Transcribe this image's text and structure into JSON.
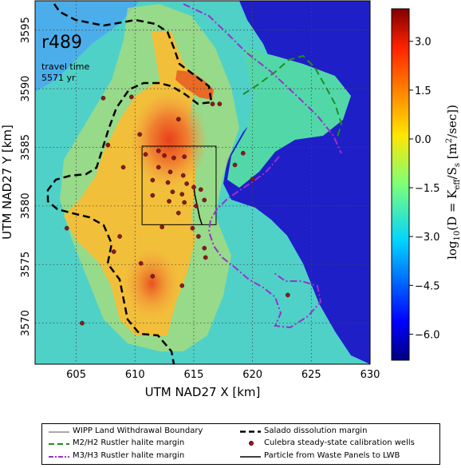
{
  "chart_data": {
    "type": "heatmap",
    "xlabel": "UTM NAD27 X [km]",
    "ylabel": "UTM NAD27 Y [km]",
    "xlim": [
      601.5,
      630
    ],
    "ylim": [
      3566.5,
      3597.5
    ],
    "xticks": [
      605,
      610,
      615,
      620,
      625,
      630
    ],
    "yticks": [
      3570,
      3575,
      3580,
      3585,
      3590,
      3595
    ],
    "grid": true,
    "realization": "r489",
    "travel_time_label": "travel time",
    "travel_time_value": "5571 yr",
    "colorbar": {
      "label": "log10(D = K_eff / S_s [m^2/sec])",
      "min": -6.8,
      "max": 4.0,
      "ticks": [
        3.0,
        1.5,
        0.0,
        -1.5,
        -3.0,
        -4.5,
        -6.0
      ],
      "tick_labels": [
        "3.0",
        "1.5",
        "0.0",
        "−1.5",
        "−3.0",
        "−4.5",
        "−6.0"
      ],
      "colormap": "jet"
    },
    "lwb_box": {
      "x": [
        610.6,
        616.9
      ],
      "y": [
        3578.4,
        3585.1
      ]
    },
    "particle_path": [
      [
        615.0,
        3581.6
      ],
      [
        615.1,
        3580.9
      ],
      [
        615.3,
        3580.0
      ],
      [
        615.5,
        3579.0
      ],
      [
        615.7,
        3578.4
      ]
    ],
    "wells": [
      [
        607.3,
        3589.2
      ],
      [
        609.7,
        3589.3
      ],
      [
        610.4,
        3586.1
      ],
      [
        607.7,
        3585.2
      ],
      [
        613.7,
        3587.4
      ],
      [
        616.6,
        3588.7
      ],
      [
        617.2,
        3588.7
      ],
      [
        618.5,
        3583.5
      ],
      [
        620.0,
        3582.3
      ],
      [
        619.2,
        3584.5
      ],
      [
        610.9,
        3584.4
      ],
      [
        612.0,
        3584.7
      ],
      [
        612.5,
        3584.3
      ],
      [
        613.3,
        3584.1
      ],
      [
        614.2,
        3584.2
      ],
      [
        612.0,
        3583.3
      ],
      [
        613.0,
        3582.9
      ],
      [
        614.1,
        3582.6
      ],
      [
        611.5,
        3582.2
      ],
      [
        612.8,
        3582.0
      ],
      [
        614.4,
        3581.9
      ],
      [
        615.0,
        3581.6
      ],
      [
        615.6,
        3581.4
      ],
      [
        613.2,
        3581.2
      ],
      [
        614.0,
        3581.0
      ],
      [
        611.5,
        3580.9
      ],
      [
        612.9,
        3580.4
      ],
      [
        614.2,
        3580.3
      ],
      [
        615.2,
        3580.0
      ],
      [
        615.9,
        3580.5
      ],
      [
        613.7,
        3579.4
      ],
      [
        612.3,
        3578.2
      ],
      [
        614.9,
        3578.1
      ],
      [
        615.4,
        3577.4
      ],
      [
        615.9,
        3576.4
      ],
      [
        616.0,
        3575.6
      ],
      [
        608.7,
        3577.4
      ],
      [
        608.2,
        3576.1
      ],
      [
        610.5,
        3575.1
      ],
      [
        611.5,
        3574.0
      ],
      [
        614.0,
        3573.2
      ],
      [
        605.5,
        3570.0
      ],
      [
        604.2,
        3578.1
      ],
      [
        609.0,
        3583.3
      ],
      [
        623.0,
        3572.4
      ]
    ],
    "regions": [
      {
        "name": "high-D core",
        "log10D": 2.8
      },
      {
        "name": "north channel",
        "log10D": 2.5
      },
      {
        "name": "south core",
        "log10D": 2.2
      },
      {
        "name": "inside Salado margin",
        "log10D": 0.8
      },
      {
        "name": "outside margin",
        "log10D": -1.6
      },
      {
        "name": "low-D east",
        "log10D": -6.5
      }
    ]
  },
  "legend": {
    "wipp": "WIPP Land Withdrawal Boundary",
    "m2h2": "M2/H2 Rustler halite margin",
    "m3h3": "M3/H3 Rustler halite margin",
    "salado": "Salado dissolution margin",
    "wells": "Culebra steady-state calibration wells",
    "particle": "Particle from Waste Panels to LWB"
  },
  "colors": {
    "salado": "#000000",
    "m2h2": "#228B22",
    "m3h3": "#9932CC",
    "wells": "#8B1A1A",
    "lowD": "#1F1FC8",
    "background": "#4FD1C8"
  }
}
